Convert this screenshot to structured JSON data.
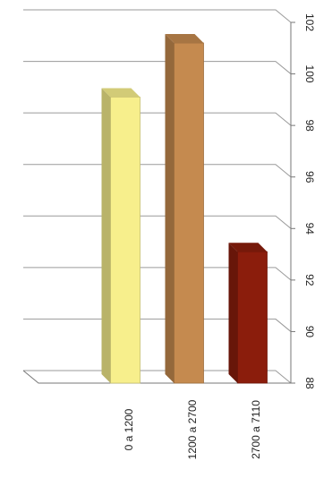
{
  "chart_data": {
    "type": "bar",
    "categories": [
      "0 a 1200",
      "1200 a 2700",
      "2700 a 7110"
    ],
    "values": [
      99.1,
      101.2,
      93.1
    ],
    "ylim": [
      88,
      102
    ],
    "yticks": [
      "88",
      "90",
      "92",
      "94",
      "96",
      "98",
      "100",
      "102"
    ],
    "grid": true,
    "three_d": true,
    "orientation": "rotated 90° clockwise (values increase downward)",
    "colors": {
      "0 a 1200": "#f7ef8c",
      "1200 a 2700": "#c58a4f",
      "2700 a 7110": "#8b1d0c"
    }
  }
}
